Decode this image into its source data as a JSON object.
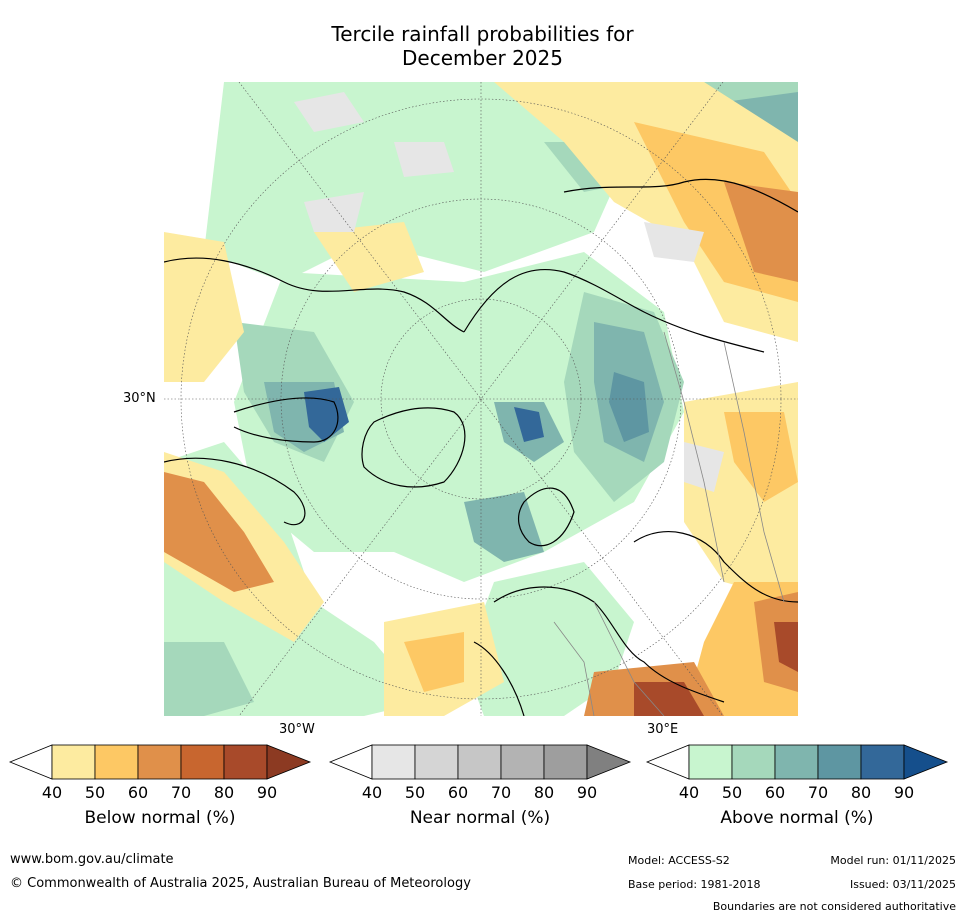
{
  "title": {
    "line1": "Tercile rainfall probabilities for",
    "line2": "December 2025"
  },
  "map": {
    "projection": "north-polar-stereographic",
    "labels": {
      "lat_30n": "30°N",
      "lon_30w": "30°W",
      "lon_30e": "30°E"
    }
  },
  "colorbars": [
    {
      "id": "below",
      "label": "Below normal (%)",
      "ticks": [
        "40",
        "50",
        "60",
        "70",
        "80",
        "90"
      ],
      "colors": [
        "#ffffff",
        "#fdeba0",
        "#fdc864",
        "#e0904a",
        "#c8662f",
        "#a84a2a",
        "#8c3a22"
      ]
    },
    {
      "id": "near",
      "label": "Near normal (%)",
      "ticks": [
        "40",
        "50",
        "60",
        "70",
        "80",
        "90"
      ],
      "colors": [
        "#ffffff",
        "#e6e6e6",
        "#d5d5d5",
        "#c6c6c6",
        "#b3b3b3",
        "#9e9e9e",
        "#808080"
      ]
    },
    {
      "id": "above",
      "label": "Above normal (%)",
      "ticks": [
        "40",
        "50",
        "60",
        "70",
        "80",
        "90"
      ],
      "colors": [
        "#ffffff",
        "#c8f5cf",
        "#a5d8bb",
        "#7fb5ae",
        "#5e96a2",
        "#336899",
        "#154f8c"
      ]
    }
  ],
  "footer": {
    "website": "www.bom.gov.au/climate",
    "copyright": "© Commonwealth of Australia 2025, Australian Bureau of Meteorology",
    "model": "Model: ACCESS-S2",
    "model_run": "Model run: 01/11/2025",
    "base_period": "Base period: 1981-2018",
    "issued": "Issued: 03/11/2025",
    "disclaimer": "Boundaries are not considered authoritative"
  }
}
